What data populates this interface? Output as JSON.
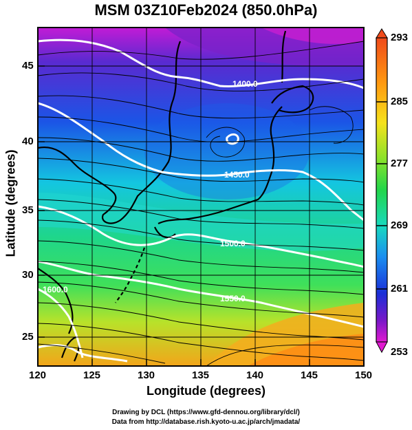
{
  "title": "MSM 03Z10Feb2024 (850.0hPa)",
  "x_axis": {
    "label": "Longitude (degrees)",
    "ticks": [
      "120",
      "125",
      "130",
      "135",
      "140",
      "145",
      "150"
    ]
  },
  "y_axis": {
    "label": "Latitude  (degrees)",
    "ticks": [
      "45",
      "40",
      "35",
      "30",
      "25"
    ]
  },
  "colorbar": {
    "ticks": [
      "293",
      "285",
      "277",
      "269",
      "261",
      "253"
    ]
  },
  "contour_labels": [
    "1400.0",
    "1450.0",
    "1500.0",
    "1550.0",
    "1600.0"
  ],
  "credits": {
    "line1": "Drawing by DCL (https://www.gfd-dennou.org/library/dcl/)",
    "line2": "Data from http://database.rish.kyoto-u.ac.jp/arch/jmadata/"
  }
}
